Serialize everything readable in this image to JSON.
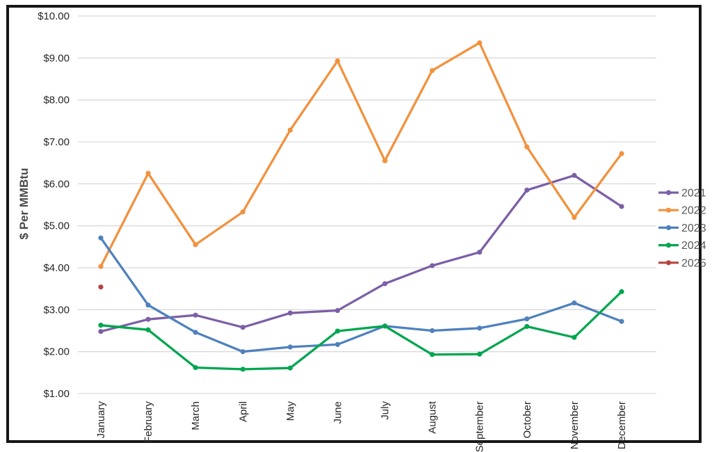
{
  "chart_data": {
    "type": "line",
    "title": "",
    "xlabel": "",
    "ylabel": "$ Per MMBtu",
    "ylim": [
      1,
      10
    ],
    "ytick_interval": 1,
    "yticks": [
      "$1.00",
      "$2.00",
      "$3.00",
      "$4.00",
      "$5.00",
      "$6.00",
      "$7.00",
      "$8.00",
      "$9.00",
      "$10.00"
    ],
    "grid": "horizontal-only",
    "gridline_color": "#d9d9d9",
    "legend_position": "right",
    "legend_text_color": "#595959",
    "axis_text_color": "#262626",
    "ylabel_color": "#4a4a4a",
    "categories": [
      "January",
      "February",
      "March",
      "April",
      "May",
      "June",
      "July",
      "August",
      "September",
      "October",
      "November",
      "December"
    ],
    "series": [
      {
        "name": "2021",
        "color": "#7c5fa6",
        "values": [
          2.48,
          2.77,
          2.87,
          2.58,
          2.92,
          2.98,
          3.62,
          4.05,
          4.37,
          5.85,
          6.2,
          5.46
        ]
      },
      {
        "name": "2022",
        "color": "#f2913d",
        "values": [
          4.03,
          6.25,
          4.55,
          5.33,
          7.28,
          8.93,
          6.55,
          8.7,
          9.36,
          6.88,
          5.2,
          6.72
        ]
      },
      {
        "name": "2023",
        "color": "#4f81bd",
        "values": [
          4.71,
          3.11,
          2.46,
          2.0,
          2.11,
          2.17,
          2.61,
          2.5,
          2.56,
          2.78,
          3.16,
          2.72
        ]
      },
      {
        "name": "2024",
        "color": "#00a64f",
        "values": [
          2.63,
          2.52,
          1.62,
          1.58,
          1.61,
          2.49,
          2.61,
          1.93,
          1.94,
          2.6,
          2.34,
          3.43
        ]
      },
      {
        "name": "2025",
        "color": "#b8433f",
        "values": [
          3.54,
          null,
          null,
          null,
          null,
          null,
          null,
          null,
          null,
          null,
          null,
          null
        ]
      }
    ]
  }
}
